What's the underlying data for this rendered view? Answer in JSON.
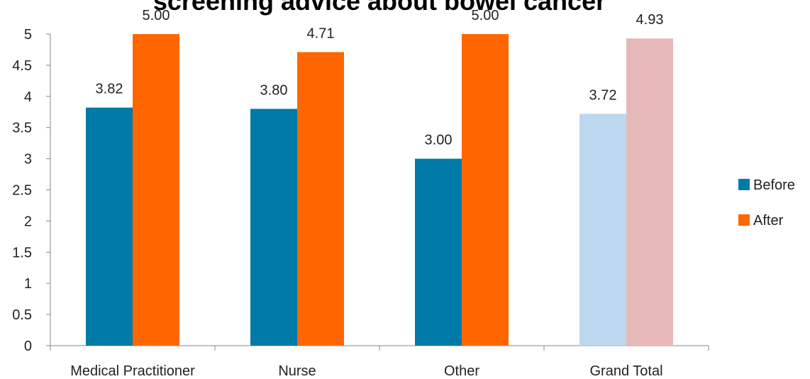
{
  "chart_data": {
    "type": "bar",
    "title": "screening advice about bowel cancer",
    "xlabel": "",
    "ylabel": "",
    "categories": [
      "Medical Practitioner",
      "Nurse",
      "Other",
      "Grand Total"
    ],
    "series": [
      {
        "name": "Before",
        "values": [
          3.82,
          3.8,
          3.0,
          3.72
        ],
        "color": "#007BA7",
        "highlight_last_color": "#BDD7EE"
      },
      {
        "name": "After",
        "values": [
          5.0,
          4.71,
          5.0,
          4.93
        ],
        "color": "#FF6600",
        "highlight_last_color": "#E6B9B8"
      }
    ],
    "data_labels": [
      [
        "3.82",
        "3.80",
        "3.00",
        "3.72"
      ],
      [
        "5.00",
        "4.71",
        "5.00",
        "4.93"
      ]
    ],
    "ylim": [
      0,
      5
    ],
    "yticks": [
      "0",
      "0.5",
      "1",
      "1.5",
      "2",
      "2.5",
      "3",
      "3.5",
      "4",
      "4.5",
      "5"
    ],
    "grid": false,
    "legend_position": "right"
  }
}
